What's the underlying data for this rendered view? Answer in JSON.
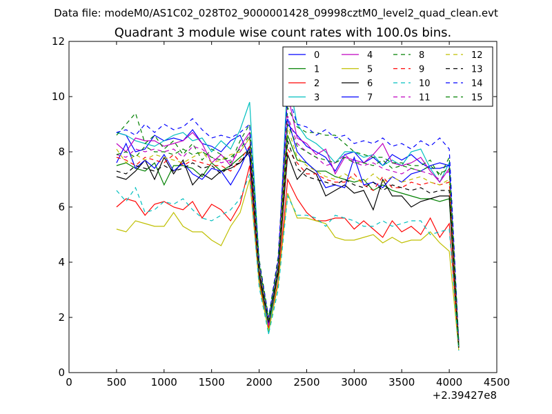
{
  "chart_data": {
    "type": "line",
    "suptitle": "Data file: modeM0/AS1C02_028T02_9000001428_09998cztM0_level2_quad_clean.evt",
    "title": "Quadrant 3 module wise count rates with 100.0s bins.",
    "xlabel": "",
    "ylabel": "",
    "xlim": [
      0,
      4500
    ],
    "ylim": [
      0,
      12
    ],
    "x_offset_label": "+2.39427e8",
    "xticks": [
      0,
      500,
      1000,
      1500,
      2000,
      2500,
      3000,
      3500,
      4000,
      4500
    ],
    "yticks": [
      0,
      2,
      4,
      6,
      8,
      10,
      12
    ],
    "legend": {
      "location": "top-right",
      "ncol": 4
    },
    "x": [
      500,
      600,
      700,
      800,
      900,
      1000,
      1100,
      1200,
      1300,
      1400,
      1500,
      1600,
      1700,
      1800,
      1900,
      2000,
      2100,
      2200,
      2300,
      2400,
      2500,
      2600,
      2700,
      2800,
      2900,
      3000,
      3100,
      3200,
      3300,
      3400,
      3500,
      3600,
      3700,
      3800,
      3900,
      4000,
      4100
    ],
    "series": [
      {
        "name": "0",
        "color": "#0000ff",
        "dash": "solid",
        "values": [
          8.7,
          8.6,
          8.0,
          8.1,
          8.6,
          8.4,
          8.5,
          8.4,
          8.8,
          8.3,
          8.2,
          8.0,
          8.4,
          8.6,
          7.8,
          3.9,
          1.9,
          4.0,
          9.0,
          8.6,
          8.2,
          8.0,
          7.8,
          7.3,
          7.9,
          8.0,
          7.6,
          7.8,
          7.5,
          7.9,
          7.7,
          7.9,
          7.6,
          7.4,
          7.4,
          7.5,
          1.0
        ]
      },
      {
        "name": "1",
        "color": "#008000",
        "dash": "solid",
        "values": [
          7.5,
          7.6,
          7.4,
          7.3,
          7.6,
          6.8,
          7.5,
          7.5,
          7.4,
          7.1,
          7.6,
          7.3,
          7.5,
          7.8,
          8.1,
          3.5,
          1.6,
          3.6,
          8.6,
          7.7,
          7.6,
          7.3,
          7.3,
          7.1,
          7.0,
          6.9,
          7.0,
          6.6,
          6.8,
          6.6,
          6.5,
          6.4,
          6.3,
          6.3,
          6.2,
          6.3,
          0.9
        ]
      },
      {
        "name": "2",
        "color": "#ff0000",
        "dash": "solid",
        "values": [
          6.0,
          6.3,
          6.2,
          5.7,
          6.1,
          6.2,
          6.0,
          5.9,
          6.2,
          5.6,
          6.1,
          5.9,
          5.5,
          6.1,
          7.5,
          3.3,
          1.6,
          3.3,
          7.0,
          6.3,
          5.8,
          5.5,
          5.5,
          5.6,
          5.6,
          5.2,
          5.5,
          5.2,
          4.9,
          5.5,
          5.1,
          5.3,
          5.0,
          5.6,
          4.9,
          5.4,
          0.9
        ]
      },
      {
        "name": "3",
        "color": "#00bfbf",
        "dash": "solid",
        "values": [
          8.7,
          8.6,
          8.4,
          8.3,
          8.2,
          8.4,
          8.6,
          8.7,
          8.4,
          8.5,
          8.0,
          8.4,
          8.1,
          8.8,
          9.8,
          4.0,
          1.4,
          3.8,
          10.8,
          9.0,
          8.5,
          8.3,
          8.0,
          7.6,
          8.0,
          8.0,
          7.8,
          7.9,
          7.5,
          7.7,
          7.5,
          8.0,
          8.1,
          7.4,
          6.9,
          7.6,
          1.0
        ]
      },
      {
        "name": "4",
        "color": "#bf00bf",
        "dash": "solid",
        "values": [
          8.3,
          8.0,
          8.5,
          8.4,
          8.4,
          8.2,
          8.3,
          8.4,
          8.7,
          8.3,
          7.6,
          7.9,
          7.5,
          8.2,
          8.7,
          3.9,
          1.7,
          4.0,
          10.1,
          8.5,
          8.3,
          7.9,
          8.1,
          7.2,
          7.8,
          7.7,
          7.6,
          7.9,
          8.3,
          7.6,
          7.5,
          7.6,
          7.8,
          7.3,
          6.9,
          7.4,
          1.0
        ]
      },
      {
        "name": "5",
        "color": "#bfbf00",
        "dash": "solid",
        "values": [
          5.2,
          5.1,
          5.5,
          5.4,
          5.3,
          5.3,
          5.8,
          5.3,
          5.1,
          5.1,
          4.8,
          4.6,
          5.3,
          5.8,
          7.0,
          3.2,
          1.5,
          3.2,
          6.5,
          5.6,
          5.6,
          5.5,
          5.4,
          4.9,
          4.8,
          4.8,
          4.9,
          5.0,
          4.7,
          4.9,
          4.7,
          4.8,
          4.8,
          5.1,
          4.7,
          4.4,
          0.8
        ]
      },
      {
        "name": "6",
        "color": "#000000",
        "dash": "solid",
        "values": [
          7.1,
          7.0,
          7.3,
          7.7,
          7.0,
          7.8,
          7.2,
          7.7,
          6.8,
          7.2,
          7.0,
          7.3,
          7.4,
          7.6,
          8.0,
          3.6,
          1.8,
          3.6,
          7.9,
          7.0,
          7.4,
          7.2,
          6.4,
          6.6,
          6.8,
          6.5,
          6.6,
          5.9,
          7.0,
          6.4,
          6.4,
          6.0,
          6.2,
          6.3,
          6.4,
          6.4,
          0.9
        ]
      },
      {
        "name": "7",
        "color": "#0000ff",
        "dash": "solid",
        "values": [
          7.6,
          8.3,
          7.4,
          7.7,
          7.4,
          7.9,
          7.3,
          7.6,
          7.2,
          7.0,
          7.4,
          7.3,
          6.8,
          7.4,
          8.2,
          3.7,
          1.8,
          3.9,
          9.2,
          8.0,
          7.6,
          7.3,
          6.7,
          6.8,
          6.7,
          7.8,
          6.8,
          6.9,
          6.7,
          7.1,
          6.9,
          7.2,
          7.3,
          7.5,
          7.6,
          7.5,
          1.0
        ]
      },
      {
        "name": "8",
        "color": "#008000",
        "dash": "dashed",
        "values": [
          8.6,
          9.0,
          9.4,
          8.3,
          8.6,
          8.1,
          8.4,
          7.9,
          8.3,
          7.7,
          8.1,
          7.9,
          7.6,
          8.4,
          9.0,
          4.1,
          2.0,
          4.2,
          9.6,
          8.9,
          8.7,
          8.7,
          8.6,
          8.6,
          8.3,
          8.0,
          7.9,
          7.8,
          7.8,
          7.6,
          7.6,
          7.5,
          7.5,
          7.7,
          7.1,
          7.8,
          1.1
        ]
      },
      {
        "name": "9",
        "color": "#ff0000",
        "dash": "dashed",
        "values": [
          7.8,
          7.7,
          7.5,
          7.8,
          7.7,
          7.6,
          7.9,
          7.5,
          7.7,
          7.6,
          7.5,
          7.5,
          7.3,
          7.7,
          8.2,
          3.7,
          1.8,
          3.7,
          8.1,
          7.6,
          7.2,
          7.2,
          7.0,
          6.9,
          6.9,
          7.2,
          6.8,
          6.6,
          7.1,
          6.7,
          6.7,
          6.9,
          6.8,
          6.9,
          6.8,
          6.9,
          1.0
        ]
      },
      {
        "name": "10",
        "color": "#00bfbf",
        "dash": "dashed",
        "values": [
          6.6,
          6.2,
          6.7,
          5.8,
          5.9,
          6.2,
          6.1,
          6.3,
          5.9,
          5.6,
          5.5,
          5.7,
          5.9,
          6.3,
          7.2,
          3.1,
          1.4,
          3.0,
          6.4,
          5.7,
          5.7,
          5.6,
          5.3,
          5.7,
          5.6,
          5.5,
          5.3,
          5.3,
          5.5,
          5.3,
          5.4,
          5.5,
          5.5,
          5.0,
          5.1,
          5.2,
          0.8
        ]
      },
      {
        "name": "11",
        "color": "#bf00bf",
        "dash": "dashed",
        "values": [
          7.9,
          7.8,
          8.1,
          8.0,
          8.1,
          8.0,
          8.1,
          7.8,
          8.2,
          8.1,
          7.8,
          7.6,
          7.7,
          8.0,
          8.5,
          3.8,
          1.8,
          3.8,
          9.3,
          8.3,
          8.0,
          7.8,
          7.5,
          7.6,
          7.9,
          7.6,
          7.5,
          7.6,
          7.4,
          7.3,
          7.2,
          7.4,
          7.3,
          7.2,
          7.0,
          7.3,
          1.0
        ]
      },
      {
        "name": "12",
        "color": "#bfbf00",
        "dash": "dashed",
        "values": [
          8.1,
          7.6,
          7.9,
          7.7,
          7.9,
          7.8,
          7.7,
          7.6,
          7.8,
          8.0,
          7.6,
          7.7,
          7.9,
          8.0,
          8.5,
          3.8,
          1.9,
          3.9,
          8.9,
          7.8,
          7.5,
          7.3,
          7.1,
          7.0,
          7.2,
          7.0,
          6.9,
          7.2,
          6.9,
          7.1,
          6.9,
          7.0,
          7.1,
          6.9,
          6.8,
          7.0,
          1.0
        ]
      },
      {
        "name": "13",
        "color": "#000000",
        "dash": "dashed",
        "values": [
          7.3,
          7.2,
          7.5,
          7.4,
          7.3,
          7.5,
          7.3,
          7.4,
          7.6,
          7.4,
          7.5,
          7.2,
          7.5,
          7.6,
          8.1,
          3.6,
          1.8,
          3.7,
          8.4,
          7.4,
          7.1,
          7.0,
          6.9,
          6.8,
          7.0,
          6.8,
          6.7,
          6.9,
          6.6,
          6.8,
          6.7,
          6.6,
          6.7,
          6.5,
          6.6,
          6.6,
          0.9
        ]
      },
      {
        "name": "14",
        "color": "#0000ff",
        "dash": "dashed",
        "values": [
          8.7,
          8.8,
          8.6,
          9.0,
          8.7,
          9.0,
          8.8,
          8.9,
          9.2,
          8.8,
          8.5,
          8.6,
          8.5,
          8.7,
          9.0,
          4.0,
          2.0,
          4.1,
          10.1,
          9.0,
          8.9,
          8.6,
          8.8,
          8.5,
          8.6,
          8.3,
          8.4,
          8.3,
          8.5,
          8.2,
          8.3,
          8.1,
          8.4,
          8.2,
          8.5,
          8.1,
          1.1
        ]
      },
      {
        "name": "15",
        "color": "#008000",
        "dash": "dashed",
        "values": [
          7.9,
          8.0,
          7.8,
          8.2,
          8.0,
          8.0,
          7.9,
          8.1,
          7.9,
          8.0,
          7.8,
          7.7,
          7.8,
          8.1,
          8.6,
          3.9,
          1.9,
          3.8,
          9.0,
          8.2,
          8.0,
          7.8,
          7.7,
          7.6,
          7.8,
          7.6,
          7.6,
          7.5,
          7.7,
          7.4,
          7.5,
          7.4,
          7.3,
          7.5,
          7.2,
          7.4,
          1.0
        ]
      }
    ]
  }
}
